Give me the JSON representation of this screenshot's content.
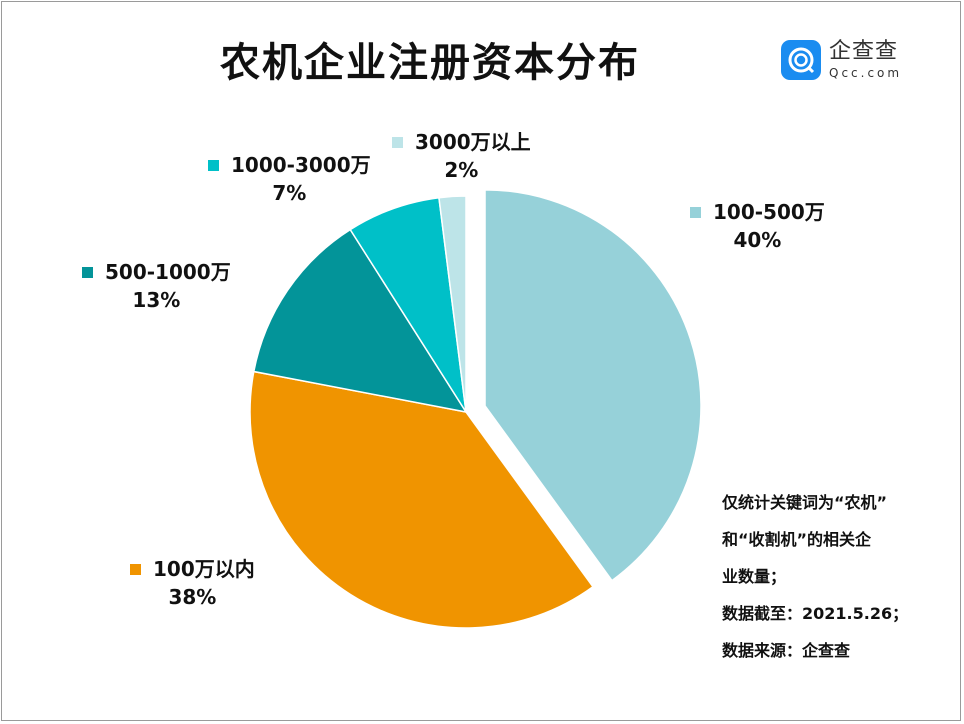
{
  "chart_data": {
    "type": "pie",
    "title": "农机企业注册资本分布",
    "slices": [
      {
        "label": "100-500万",
        "value": 40,
        "pct_label": "40%",
        "color": "#96d1d9",
        "exploded": true
      },
      {
        "label": "100万以内",
        "value": 38,
        "pct_label": "38%",
        "color": "#f09400",
        "exploded": false
      },
      {
        "label": "500-1000万",
        "value": 13,
        "pct_label": "13%",
        "color": "#039499",
        "exploded": false
      },
      {
        "label": "1000-3000万",
        "value": 7,
        "pct_label": "7%",
        "color": "#00c0c8",
        "exploded": false
      },
      {
        "label": "3000万以上",
        "value": 2,
        "pct_label": "2%",
        "color": "#bde4e8",
        "exploded": false
      }
    ],
    "start": "12 o'clock",
    "direction": "clockwise"
  },
  "logo": {
    "cn": "企查查",
    "en": "Qcc.com"
  },
  "note": [
    "仅统计关键词为“农机”",
    "和“收割机”的相关企",
    "业数量；",
    "数据截至：2021.5.26；",
    "数据来源：企查查"
  ]
}
